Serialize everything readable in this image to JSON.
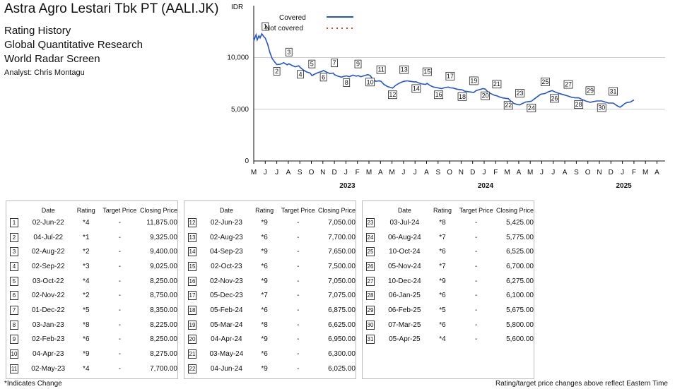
{
  "header": {
    "title": "Astra Agro Lestari Tbk PT (AALI.JK)",
    "sub1": "Rating History",
    "sub2": "Global Quantitative Research",
    "sub3": "World Radar Screen",
    "analyst": "Analyst: Chris Montagu"
  },
  "chart_data": {
    "type": "line",
    "ylabel": "IDR",
    "ylim": [
      0,
      13000
    ],
    "yticks": [
      0,
      5000,
      10000
    ],
    "ytick_labels": [
      "0",
      "5,000",
      "10,000"
    ],
    "x_months": [
      "M",
      "J",
      "J",
      "A",
      "S",
      "O",
      "N",
      "D",
      "J",
      "F",
      "M",
      "A",
      "M",
      "J",
      "J",
      "A",
      "S",
      "O",
      "N",
      "D",
      "J",
      "F",
      "M",
      "A",
      "M",
      "J",
      "J",
      "A",
      "S",
      "O",
      "N",
      "D",
      "J",
      "F",
      "M",
      "A"
    ],
    "year_labels": [
      {
        "label": "2023",
        "month_index": 8
      },
      {
        "label": "2024",
        "month_index": 20
      },
      {
        "label": "2025",
        "month_index": 32
      }
    ],
    "legend": {
      "covered": "Covered",
      "not_covered": "Not covered",
      "position": "top"
    },
    "series": [
      {
        "name": "Covered",
        "color": "#2255d6",
        "points": [
          [
            0.0,
            11600
          ],
          [
            0.1,
            11900
          ],
          [
            0.2,
            12200
          ],
          [
            0.3,
            11700
          ],
          [
            0.45,
            12100
          ],
          [
            0.55,
            11900
          ],
          [
            0.7,
            12300
          ],
          [
            0.85,
            12050
          ],
          [
            1.0,
            11875
          ],
          [
            1.2,
            11300
          ],
          [
            1.4,
            10500
          ],
          [
            1.6,
            9900
          ],
          [
            1.8,
            9600
          ],
          [
            2.0,
            9325
          ],
          [
            2.3,
            9350
          ],
          [
            2.6,
            9500
          ],
          [
            2.9,
            9300
          ],
          [
            3.05,
            9400
          ],
          [
            3.3,
            9250
          ],
          [
            3.6,
            9100
          ],
          [
            3.9,
            9200
          ],
          [
            4.05,
            9025
          ],
          [
            4.3,
            8800
          ],
          [
            4.6,
            8600
          ],
          [
            4.9,
            8500
          ],
          [
            5.05,
            8250
          ],
          [
            5.3,
            8400
          ],
          [
            5.6,
            8550
          ],
          [
            5.9,
            8650
          ],
          [
            6.05,
            8750
          ],
          [
            6.3,
            8600
          ],
          [
            6.6,
            8450
          ],
          [
            6.9,
            8500
          ],
          [
            7.0,
            8350
          ],
          [
            7.3,
            8200
          ],
          [
            7.6,
            8100
          ],
          [
            7.9,
            8200
          ],
          [
            8.05,
            8225
          ],
          [
            8.3,
            8150
          ],
          [
            8.6,
            8300
          ],
          [
            8.9,
            8200
          ],
          [
            9.05,
            8250
          ],
          [
            9.3,
            8150
          ],
          [
            9.6,
            8250
          ],
          [
            9.9,
            8350
          ],
          [
            10.1,
            8275
          ],
          [
            10.3,
            7950
          ],
          [
            10.6,
            7700
          ],
          [
            10.9,
            7750
          ],
          [
            11.05,
            7700
          ],
          [
            11.3,
            7400
          ],
          [
            11.6,
            7200
          ],
          [
            11.9,
            7100
          ],
          [
            12.05,
            7050
          ],
          [
            12.3,
            7300
          ],
          [
            12.6,
            7500
          ],
          [
            12.9,
            7650
          ],
          [
            13.05,
            7700
          ],
          [
            13.3,
            7750
          ],
          [
            13.6,
            7700
          ],
          [
            13.9,
            7650
          ],
          [
            14.1,
            7650
          ],
          [
            14.3,
            7550
          ],
          [
            14.6,
            7450
          ],
          [
            14.9,
            7400
          ],
          [
            15.05,
            7500
          ],
          [
            15.3,
            7300
          ],
          [
            15.6,
            7150
          ],
          [
            15.9,
            7100
          ],
          [
            16.05,
            7050
          ],
          [
            16.3,
            7000
          ],
          [
            16.6,
            7100
          ],
          [
            16.9,
            7150
          ],
          [
            17.05,
            7075
          ],
          [
            17.3,
            7050
          ],
          [
            17.6,
            6950
          ],
          [
            17.9,
            6900
          ],
          [
            18.1,
            6875
          ],
          [
            18.3,
            6750
          ],
          [
            18.6,
            6700
          ],
          [
            18.9,
            6650
          ],
          [
            19.1,
            6625
          ],
          [
            19.3,
            6800
          ],
          [
            19.6,
            6900
          ],
          [
            19.9,
            7000
          ],
          [
            20.1,
            6950
          ],
          [
            20.3,
            6700
          ],
          [
            20.6,
            6500
          ],
          [
            20.9,
            6350
          ],
          [
            21.1,
            6300
          ],
          [
            21.3,
            6200
          ],
          [
            21.6,
            6100
          ],
          [
            21.9,
            6050
          ],
          [
            22.1,
            6025
          ],
          [
            22.3,
            5800
          ],
          [
            22.6,
            5550
          ],
          [
            22.9,
            5450
          ],
          [
            23.1,
            5425
          ],
          [
            23.3,
            5550
          ],
          [
            23.6,
            5700
          ],
          [
            23.9,
            5750
          ],
          [
            24.1,
            5775
          ],
          [
            24.3,
            5950
          ],
          [
            24.6,
            6200
          ],
          [
            24.9,
            6450
          ],
          [
            25.3,
            6525
          ],
          [
            25.6,
            6700
          ],
          [
            25.9,
            6800
          ],
          [
            26.1,
            6700
          ],
          [
            26.3,
            6600
          ],
          [
            26.6,
            6500
          ],
          [
            26.9,
            6400
          ],
          [
            27.3,
            6275
          ],
          [
            27.6,
            6150
          ],
          [
            27.9,
            6100
          ],
          [
            28.2,
            6100
          ],
          [
            28.5,
            5950
          ],
          [
            28.8,
            5800
          ],
          [
            29.2,
            5675
          ],
          [
            29.5,
            5750
          ],
          [
            29.8,
            5800
          ],
          [
            30.2,
            5800
          ],
          [
            30.5,
            5700
          ],
          [
            30.8,
            5600
          ],
          [
            31.2,
            5600
          ],
          [
            31.4,
            5450
          ],
          [
            31.6,
            5300
          ],
          [
            31.8,
            5200
          ],
          [
            32.0,
            5350
          ],
          [
            32.2,
            5550
          ],
          [
            32.4,
            5650
          ],
          [
            32.7,
            5700
          ],
          [
            33.0,
            5900
          ]
        ]
      }
    ],
    "rating_markers": [
      {
        "n": "1",
        "x": 1.0,
        "y": 11875
      },
      {
        "n": "2",
        "x": 2.0,
        "y": 9325
      },
      {
        "n": "3",
        "x": 3.05,
        "y": 9400
      },
      {
        "n": "4",
        "x": 4.05,
        "y": 9025
      },
      {
        "n": "5",
        "x": 5.05,
        "y": 8250
      },
      {
        "n": "6",
        "x": 6.05,
        "y": 8750
      },
      {
        "n": "7",
        "x": 7.0,
        "y": 8350
      },
      {
        "n": "8",
        "x": 8.05,
        "y": 8225
      },
      {
        "n": "9",
        "x": 9.05,
        "y": 8250
      },
      {
        "n": "10",
        "x": 10.1,
        "y": 8275
      },
      {
        "n": "11",
        "x": 11.05,
        "y": 7700
      },
      {
        "n": "12",
        "x": 12.05,
        "y": 7050
      },
      {
        "n": "13",
        "x": 13.05,
        "y": 7700
      },
      {
        "n": "14",
        "x": 14.1,
        "y": 7650
      },
      {
        "n": "15",
        "x": 15.05,
        "y": 7500
      },
      {
        "n": "16",
        "x": 16.05,
        "y": 7050
      },
      {
        "n": "17",
        "x": 17.05,
        "y": 7075
      },
      {
        "n": "18",
        "x": 18.1,
        "y": 6875
      },
      {
        "n": "19",
        "x": 19.1,
        "y": 6625
      },
      {
        "n": "20",
        "x": 20.1,
        "y": 6950
      },
      {
        "n": "21",
        "x": 21.1,
        "y": 6300
      },
      {
        "n": "22",
        "x": 22.1,
        "y": 6025
      },
      {
        "n": "23",
        "x": 23.1,
        "y": 5425
      },
      {
        "n": "24",
        "x": 24.1,
        "y": 5775
      },
      {
        "n": "25",
        "x": 25.3,
        "y": 6525
      },
      {
        "n": "26",
        "x": 26.1,
        "y": 6700
      },
      {
        "n": "27",
        "x": 27.3,
        "y": 6275
      },
      {
        "n": "28",
        "x": 28.2,
        "y": 6100
      },
      {
        "n": "29",
        "x": 29.2,
        "y": 5675
      },
      {
        "n": "30",
        "x": 30.2,
        "y": 5800
      },
      {
        "n": "31",
        "x": 31.2,
        "y": 5600
      }
    ]
  },
  "table": {
    "headers": {
      "date": "Date",
      "rating": "Rating",
      "target": "Target Price",
      "closing": "Closing Price"
    },
    "panels": [
      [
        [
          "1",
          "02-Jun-22",
          "*4",
          "-",
          "11,875.00"
        ],
        [
          "2",
          "04-Jul-22",
          "*1",
          "-",
          "9,325.00"
        ],
        [
          "3",
          "02-Aug-22",
          "*2",
          "-",
          "9,400.00"
        ],
        [
          "4",
          "02-Sep-22",
          "*3",
          "-",
          "9,025.00"
        ],
        [
          "5",
          "03-Oct-22",
          "*4",
          "-",
          "8,250.00"
        ],
        [
          "6",
          "02-Nov-22",
          "*2",
          "-",
          "8,750.00"
        ],
        [
          "7",
          "01-Dec-22",
          "*5",
          "-",
          "8,350.00"
        ],
        [
          "8",
          "03-Jan-23",
          "*8",
          "-",
          "8,225.00"
        ],
        [
          "9",
          "02-Feb-23",
          "*6",
          "-",
          "8,250.00"
        ],
        [
          "10",
          "04-Apr-23",
          "*9",
          "-",
          "8,275.00"
        ],
        [
          "11",
          "02-May-23",
          "*4",
          "-",
          "7,700.00"
        ]
      ],
      [
        [
          "12",
          "02-Jun-23",
          "*9",
          "-",
          "7,050.00"
        ],
        [
          "13",
          "02-Aug-23",
          "*6",
          "-",
          "7,700.00"
        ],
        [
          "14",
          "04-Sep-23",
          "*9",
          "-",
          "7,650.00"
        ],
        [
          "15",
          "02-Oct-23",
          "*6",
          "-",
          "7,500.00"
        ],
        [
          "16",
          "02-Nov-23",
          "*9",
          "-",
          "7,050.00"
        ],
        [
          "17",
          "05-Dec-23",
          "*7",
          "-",
          "7,075.00"
        ],
        [
          "18",
          "05-Feb-24",
          "*6",
          "-",
          "6,875.00"
        ],
        [
          "19",
          "05-Mar-24",
          "*8",
          "-",
          "6,625.00"
        ],
        [
          "20",
          "04-Apr-24",
          "*9",
          "-",
          "6,950.00"
        ],
        [
          "21",
          "03-May-24",
          "*6",
          "-",
          "6,300.00"
        ],
        [
          "22",
          "04-Jun-24",
          "*9",
          "-",
          "6,025.00"
        ]
      ],
      [
        [
          "23",
          "03-Jul-24",
          "*8",
          "-",
          "5,425.00"
        ],
        [
          "24",
          "06-Aug-24",
          "*7",
          "-",
          "5,775.00"
        ],
        [
          "25",
          "10-Oct-24",
          "*6",
          "-",
          "6,525.00"
        ],
        [
          "26",
          "05-Nov-24",
          "*7",
          "-",
          "6,700.00"
        ],
        [
          "27",
          "10-Dec-24",
          "*9",
          "-",
          "6,275.00"
        ],
        [
          "28",
          "06-Jan-25",
          "*6",
          "-",
          "6,100.00"
        ],
        [
          "29",
          "06-Feb-25",
          "*5",
          "-",
          "5,675.00"
        ],
        [
          "30",
          "07-Mar-25",
          "*6",
          "-",
          "5,800.00"
        ],
        [
          "31",
          "05-Apr-25",
          "*4",
          "-",
          "5,600.00"
        ]
      ]
    ]
  },
  "footer": {
    "left": "*Indicates Change",
    "right": "Rating/target price changes above reflect Eastern Time"
  }
}
